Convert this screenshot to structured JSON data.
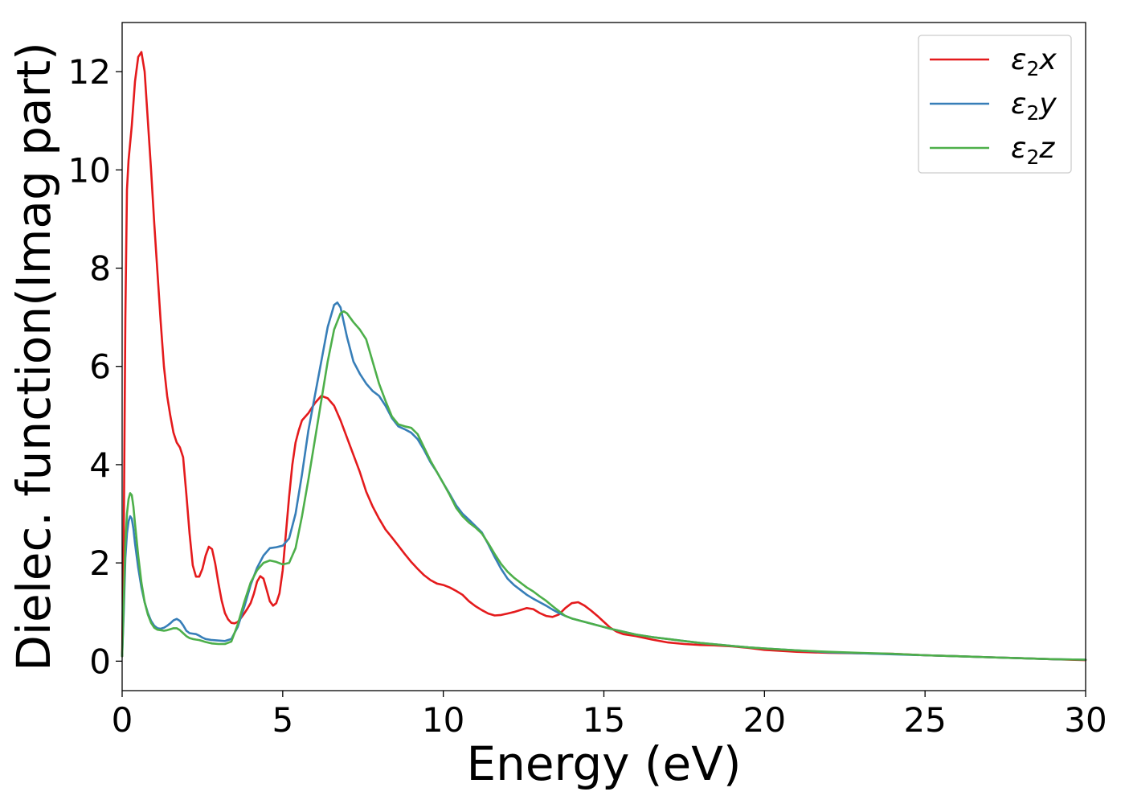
{
  "chart_data": {
    "type": "line",
    "title": "",
    "xlabel": "Energy (eV)",
    "ylabel": "Dielec. function(Imag part)",
    "xlim": [
      0,
      30
    ],
    "ylim": [
      -0.6,
      13
    ],
    "xticks": [
      0,
      5,
      10,
      15,
      20,
      25,
      30
    ],
    "xtick_labels": [
      "0",
      "5",
      "10",
      "15",
      "20",
      "25",
      "30"
    ],
    "yticks": [
      0,
      2,
      4,
      6,
      8,
      10,
      12
    ],
    "ytick_labels": [
      "0",
      "2",
      "4",
      "6",
      "8",
      "10",
      "12"
    ],
    "grid": false,
    "legend_position": "top-right",
    "series": [
      {
        "name": "ε₂x",
        "legend_base": "ε",
        "legend_sub": "2",
        "legend_var": "x",
        "color": "#e41a1c",
        "x": [
          0,
          0.05,
          0.1,
          0.15,
          0.2,
          0.3,
          0.4,
          0.5,
          0.6,
          0.7,
          0.8,
          0.9,
          1.0,
          1.1,
          1.2,
          1.3,
          1.4,
          1.5,
          1.6,
          1.7,
          1.8,
          1.9,
          2.0,
          2.1,
          2.2,
          2.3,
          2.4,
          2.5,
          2.6,
          2.7,
          2.8,
          2.9,
          3.0,
          3.1,
          3.2,
          3.3,
          3.4,
          3.5,
          3.6,
          3.7,
          3.8,
          3.9,
          4.0,
          4.1,
          4.2,
          4.3,
          4.4,
          4.5,
          4.6,
          4.7,
          4.8,
          4.9,
          5.0,
          5.1,
          5.2,
          5.3,
          5.4,
          5.5,
          5.6,
          5.8,
          6.0,
          6.2,
          6.4,
          6.6,
          6.8,
          7.0,
          7.2,
          7.4,
          7.6,
          7.8,
          8.0,
          8.2,
          8.4,
          8.6,
          8.8,
          9.0,
          9.2,
          9.4,
          9.6,
          9.8,
          10.0,
          10.2,
          10.4,
          10.6,
          10.8,
          11.0,
          11.2,
          11.4,
          11.6,
          11.8,
          12.0,
          12.2,
          12.4,
          12.6,
          12.8,
          13.0,
          13.2,
          13.4,
          13.6,
          13.8,
          14.0,
          14.2,
          14.4,
          14.6,
          14.8,
          15.0,
          15.2,
          15.4,
          15.6,
          15.8,
          16.0,
          16.5,
          17.0,
          17.5,
          18.0,
          18.5,
          19.0,
          19.5,
          20.0,
          21.0,
          22.0,
          23.0,
          24.0,
          25.0,
          26.0,
          27.0,
          28.0,
          29.0,
          30.0
        ],
        "values": [
          0.1,
          2.5,
          7.0,
          9.6,
          10.2,
          10.9,
          11.8,
          12.3,
          12.4,
          12.0,
          11.0,
          10.0,
          8.9,
          7.9,
          6.9,
          6.0,
          5.4,
          5.0,
          4.65,
          4.45,
          4.35,
          4.15,
          3.4,
          2.6,
          1.95,
          1.72,
          1.72,
          1.88,
          2.15,
          2.33,
          2.28,
          1.98,
          1.58,
          1.23,
          0.98,
          0.85,
          0.78,
          0.77,
          0.8,
          0.88,
          0.97,
          1.07,
          1.18,
          1.37,
          1.62,
          1.73,
          1.68,
          1.45,
          1.22,
          1.13,
          1.18,
          1.38,
          1.85,
          2.6,
          3.35,
          4.0,
          4.45,
          4.7,
          4.9,
          5.05,
          5.25,
          5.4,
          5.35,
          5.2,
          4.9,
          4.55,
          4.2,
          3.85,
          3.45,
          3.15,
          2.9,
          2.68,
          2.52,
          2.35,
          2.18,
          2.02,
          1.88,
          1.75,
          1.65,
          1.58,
          1.55,
          1.5,
          1.43,
          1.35,
          1.22,
          1.12,
          1.04,
          0.97,
          0.93,
          0.94,
          0.97,
          1.0,
          1.04,
          1.08,
          1.06,
          0.98,
          0.92,
          0.9,
          0.95,
          1.08,
          1.18,
          1.2,
          1.13,
          1.03,
          0.92,
          0.8,
          0.68,
          0.6,
          0.55,
          0.53,
          0.51,
          0.44,
          0.38,
          0.35,
          0.33,
          0.32,
          0.3,
          0.27,
          0.23,
          0.19,
          0.17,
          0.16,
          0.15,
          0.12,
          0.1,
          0.08,
          0.06,
          0.04,
          0.02
        ]
      },
      {
        "name": "ε₂y",
        "legend_base": "ε",
        "legend_sub": "2",
        "legend_var": "y",
        "color": "#377eb8",
        "x": [
          0,
          0.05,
          0.1,
          0.15,
          0.2,
          0.25,
          0.3,
          0.35,
          0.4,
          0.5,
          0.6,
          0.7,
          0.8,
          0.9,
          1.0,
          1.1,
          1.2,
          1.3,
          1.4,
          1.5,
          1.6,
          1.7,
          1.8,
          1.9,
          2.0,
          2.1,
          2.2,
          2.3,
          2.4,
          2.5,
          2.6,
          2.8,
          3.0,
          3.2,
          3.4,
          3.6,
          3.8,
          4.0,
          4.2,
          4.4,
          4.6,
          4.8,
          5.0,
          5.2,
          5.4,
          5.6,
          5.8,
          6.0,
          6.2,
          6.4,
          6.6,
          6.7,
          6.8,
          7.0,
          7.2,
          7.4,
          7.6,
          7.8,
          8.0,
          8.2,
          8.4,
          8.6,
          8.8,
          9.0,
          9.2,
          9.4,
          9.6,
          9.8,
          10.0,
          10.2,
          10.4,
          10.6,
          10.8,
          11.0,
          11.2,
          11.4,
          11.6,
          11.8,
          12.0,
          12.2,
          12.4,
          12.6,
          12.8,
          13.0,
          13.2,
          13.4,
          13.6,
          13.8,
          14.0,
          14.4,
          14.8,
          15.2,
          15.6,
          16.0,
          16.5,
          17.0,
          17.5,
          18.0,
          18.5,
          19.0,
          19.5,
          20.0,
          21.0,
          22.0,
          23.0,
          24.0,
          25.0,
          26.0,
          27.0,
          28.0,
          29.0,
          30.0
        ],
        "values": [
          0.1,
          1.0,
          2.1,
          2.6,
          2.85,
          2.95,
          2.9,
          2.7,
          2.4,
          1.9,
          1.5,
          1.2,
          0.98,
          0.82,
          0.72,
          0.67,
          0.66,
          0.68,
          0.72,
          0.77,
          0.83,
          0.86,
          0.82,
          0.73,
          0.62,
          0.57,
          0.56,
          0.55,
          0.52,
          0.48,
          0.45,
          0.43,
          0.42,
          0.41,
          0.45,
          0.7,
          1.1,
          1.55,
          1.9,
          2.15,
          2.3,
          2.32,
          2.35,
          2.5,
          3.0,
          3.8,
          4.7,
          5.4,
          6.1,
          6.8,
          7.25,
          7.3,
          7.2,
          6.6,
          6.1,
          5.85,
          5.65,
          5.5,
          5.4,
          5.2,
          4.95,
          4.78,
          4.72,
          4.65,
          4.52,
          4.3,
          4.05,
          3.85,
          3.62,
          3.4,
          3.17,
          3.0,
          2.88,
          2.75,
          2.62,
          2.38,
          2.12,
          1.88,
          1.68,
          1.55,
          1.45,
          1.35,
          1.27,
          1.2,
          1.13,
          1.05,
          0.98,
          0.92,
          0.87,
          0.8,
          0.73,
          0.66,
          0.6,
          0.54,
          0.49,
          0.45,
          0.41,
          0.37,
          0.34,
          0.31,
          0.28,
          0.26,
          0.22,
          0.18,
          0.16,
          0.14,
          0.12,
          0.1,
          0.08,
          0.06,
          0.04,
          0.03
        ]
      },
      {
        "name": "ε₂z",
        "legend_base": "ε",
        "legend_sub": "2",
        "legend_var": "z",
        "color": "#4daf4a",
        "x": [
          0,
          0.05,
          0.1,
          0.15,
          0.2,
          0.25,
          0.3,
          0.35,
          0.4,
          0.5,
          0.6,
          0.7,
          0.8,
          0.9,
          1.0,
          1.1,
          1.2,
          1.3,
          1.4,
          1.5,
          1.6,
          1.7,
          1.8,
          1.9,
          2.0,
          2.1,
          2.2,
          2.3,
          2.4,
          2.5,
          2.6,
          2.8,
          3.0,
          3.2,
          3.4,
          3.6,
          3.8,
          4.0,
          4.2,
          4.4,
          4.6,
          4.8,
          5.0,
          5.2,
          5.4,
          5.6,
          5.8,
          6.0,
          6.2,
          6.4,
          6.6,
          6.8,
          6.9,
          7.0,
          7.2,
          7.4,
          7.6,
          7.8,
          8.0,
          8.2,
          8.4,
          8.6,
          8.8,
          9.0,
          9.2,
          9.4,
          9.6,
          9.8,
          10.0,
          10.2,
          10.4,
          10.6,
          10.8,
          11.0,
          11.2,
          11.4,
          11.6,
          11.8,
          12.0,
          12.2,
          12.4,
          12.6,
          12.8,
          13.0,
          13.2,
          13.4,
          13.6,
          13.8,
          14.0,
          14.4,
          14.8,
          15.2,
          15.6,
          16.0,
          16.5,
          17.0,
          17.5,
          18.0,
          18.5,
          19.0,
          19.5,
          20.0,
          21.0,
          22.0,
          23.0,
          24.0,
          25.0,
          26.0,
          27.0,
          28.0,
          29.0,
          30.0
        ],
        "values": [
          0.1,
          1.2,
          2.4,
          3.0,
          3.3,
          3.42,
          3.38,
          3.15,
          2.8,
          2.15,
          1.6,
          1.2,
          0.95,
          0.78,
          0.68,
          0.64,
          0.63,
          0.62,
          0.63,
          0.65,
          0.67,
          0.67,
          0.63,
          0.57,
          0.51,
          0.47,
          0.45,
          0.44,
          0.43,
          0.41,
          0.39,
          0.36,
          0.35,
          0.35,
          0.4,
          0.75,
          1.2,
          1.6,
          1.85,
          2.0,
          2.05,
          2.02,
          1.97,
          2.0,
          2.3,
          2.95,
          3.7,
          4.5,
          5.3,
          6.1,
          6.75,
          7.08,
          7.12,
          7.08,
          6.9,
          6.75,
          6.55,
          6.1,
          5.65,
          5.3,
          4.98,
          4.82,
          4.78,
          4.75,
          4.62,
          4.35,
          4.08,
          3.85,
          3.62,
          3.38,
          3.12,
          2.95,
          2.82,
          2.72,
          2.6,
          2.4,
          2.18,
          1.98,
          1.82,
          1.7,
          1.6,
          1.5,
          1.42,
          1.32,
          1.23,
          1.12,
          1.02,
          0.92,
          0.87,
          0.8,
          0.73,
          0.66,
          0.6,
          0.54,
          0.49,
          0.45,
          0.41,
          0.37,
          0.34,
          0.31,
          0.28,
          0.26,
          0.22,
          0.19,
          0.17,
          0.15,
          0.12,
          0.1,
          0.08,
          0.06,
          0.04,
          0.03
        ]
      }
    ]
  }
}
